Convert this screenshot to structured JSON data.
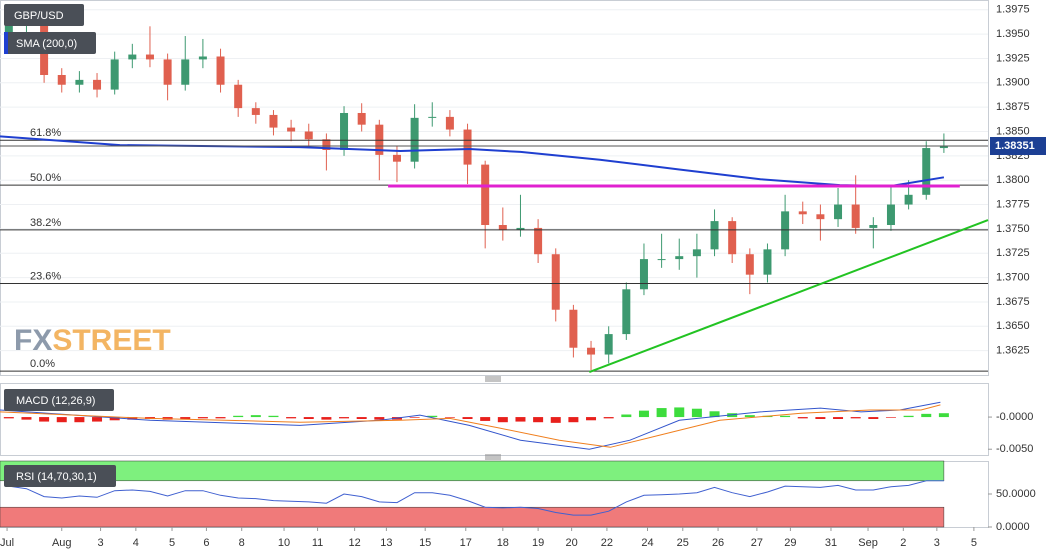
{
  "chart_data": [
    {
      "type": "candlestick",
      "title": "GBP/USD",
      "xlim": [
        0,
        56
      ],
      "ylim": [
        1.36,
        1.3985
      ],
      "yticks": [
        1.3625,
        {
          "value": 1.365,
          "label": "1.3650"
        },
        1.3675,
        {
          "value": 1.37,
          "label": "1.3700"
        },
        1.3725,
        {
          "value": 1.375,
          "label": "1.3750"
        },
        1.3775,
        {
          "value": 1.38,
          "label": "1.3800"
        },
        1.3825,
        {
          "value": 1.385,
          "label": "1.3850"
        },
        1.3875,
        {
          "value": 1.39,
          "label": "1.3900"
        },
        1.3925,
        {
          "value": 1.395,
          "label": "1.3950"
        },
        1.3975
      ],
      "grid": true,
      "up_color": "#3d9970",
      "down_color": "#e0604f",
      "candles": {
        "x": [
          0.5,
          1.5,
          2.5,
          3.5,
          4.5,
          5.5,
          6.5,
          7.5,
          8.5,
          9.5,
          10.5,
          11.5,
          12.5,
          13.5,
          14.5,
          15.5,
          16.5,
          17.5,
          18.5,
          19.5,
          20.5,
          21.5,
          22.5,
          23.5,
          24.5,
          25.5,
          26.5,
          27.5,
          28.5,
          29.5,
          30.5,
          31.5,
          32.5,
          33.5,
          34.5,
          35.5,
          36.5,
          37.5,
          38.5,
          39.5,
          40.5,
          41.5,
          42.5,
          43.5,
          44.5,
          45.5,
          46.5,
          47.5,
          48.5,
          49.5,
          50.5,
          51.5,
          52.5,
          53.5
        ],
        "open": [
          1.395,
          1.396,
          1.3963,
          1.3908,
          1.3898,
          1.3903,
          1.3893,
          1.3924,
          1.3929,
          1.3924,
          1.3898,
          1.3924,
          1.3927,
          1.3898,
          1.3874,
          1.3867,
          1.3854,
          1.385,
          1.3842,
          1.3831,
          1.3869,
          1.3857,
          1.3826,
          1.3819,
          1.3864,
          1.3865,
          1.3852,
          1.3816,
          1.3754,
          1.3749,
          1.3751,
          1.3724,
          1.3667,
          1.3628,
          1.3621,
          1.3642,
          1.3688,
          1.3719,
          1.3719,
          1.3722,
          1.3729,
          1.3758,
          1.3724,
          1.3703,
          1.3729,
          1.3768,
          1.3765,
          1.376,
          1.3775,
          1.3751,
          1.3754,
          1.3775,
          1.3785,
          1.3833
        ],
        "high": [
          1.3968,
          1.3972,
          1.397,
          1.3915,
          1.3912,
          1.391,
          1.3932,
          1.394,
          1.3958,
          1.393,
          1.3948,
          1.3945,
          1.3935,
          1.3903,
          1.388,
          1.3872,
          1.3862,
          1.3858,
          1.3848,
          1.3876,
          1.3879,
          1.3862,
          1.3835,
          1.3878,
          1.388,
          1.3872,
          1.3858,
          1.382,
          1.3772,
          1.3785,
          1.376,
          1.373,
          1.3672,
          1.3635,
          1.365,
          1.3695,
          1.3735,
          1.3745,
          1.374,
          1.3745,
          1.377,
          1.3762,
          1.373,
          1.3735,
          1.3785,
          1.3778,
          1.3775,
          1.3792,
          1.3805,
          1.3762,
          1.3795,
          1.38,
          1.384,
          1.3848
        ],
        "low": [
          1.3942,
          1.395,
          1.39,
          1.389,
          1.389,
          1.3885,
          1.3888,
          1.3915,
          1.3916,
          1.3882,
          1.3892,
          1.3915,
          1.389,
          1.3865,
          1.3858,
          1.3846,
          1.384,
          1.3834,
          1.381,
          1.3825,
          1.385,
          1.38,
          1.3798,
          1.3812,
          1.3855,
          1.3845,
          1.3796,
          1.373,
          1.3738,
          1.3742,
          1.3715,
          1.3655,
          1.3618,
          1.3605,
          1.3612,
          1.3636,
          1.3682,
          1.371,
          1.3708,
          1.37,
          1.3722,
          1.3715,
          1.3683,
          1.3695,
          1.3722,
          1.3755,
          1.3738,
          1.3752,
          1.3745,
          1.373,
          1.3748,
          1.377,
          1.378,
          1.3828
        ],
        "close": [
          1.396,
          1.3963,
          1.3908,
          1.3898,
          1.3903,
          1.3893,
          1.3924,
          1.3929,
          1.3924,
          1.3898,
          1.3924,
          1.3927,
          1.3898,
          1.3874,
          1.3867,
          1.3854,
          1.385,
          1.3842,
          1.3831,
          1.3869,
          1.3857,
          1.3826,
          1.3819,
          1.3864,
          1.3865,
          1.3852,
          1.3816,
          1.3754,
          1.3749,
          1.3751,
          1.3724,
          1.3667,
          1.3628,
          1.3621,
          1.3642,
          1.3688,
          1.3719,
          1.3719,
          1.3722,
          1.3729,
          1.3758,
          1.3724,
          1.3703,
          1.3729,
          1.3768,
          1.3765,
          1.376,
          1.3775,
          1.3751,
          1.3754,
          1.3775,
          1.3785,
          1.3833,
          1.3835
        ]
      },
      "sma": {
        "name": "SMA (200,0)",
        "color": "#1f3fd0",
        "x": [
          0,
          6.8,
          17,
          22.7,
          26.6,
          29.5,
          34,
          38.5,
          43.1,
          47.6,
          50.5,
          53.5
        ],
        "values": [
          1.3845,
          1.3836,
          1.3834,
          1.383,
          1.3832,
          1.3829,
          1.3821,
          1.3811,
          1.3801,
          1.3795,
          1.3794,
          1.3803
        ]
      },
      "fib_levels": [
        {
          "label": "61.8%",
          "value": 1.3841
        },
        {
          "label": "50.0%",
          "value": 1.3795
        },
        {
          "label": "38.2%",
          "value": 1.3749
        },
        {
          "label": "23.6%",
          "value": 1.3694
        },
        {
          "label": "0.0%",
          "value": 1.3604
        }
      ],
      "support_line": {
        "color": "#e020d0",
        "x": [
          22,
          54.4
        ],
        "values": [
          1.3794,
          1.3794
        ]
      },
      "trend_line": {
        "color": "#22c322",
        "x": [
          33.4,
          56
        ],
        "values": [
          1.3603,
          1.3759
        ]
      },
      "last_price": 1.38351,
      "last_price_color": "#1c3f94",
      "watermark": [
        "FX",
        "STREET"
      ]
    },
    {
      "type": "macd",
      "title": "MACD (12,26,9)",
      "xlim": [
        0,
        56
      ],
      "ylim": [
        -0.0059,
        0.0053
      ],
      "yticks": [
        {
          "value": 0,
          "label": "-0.0000"
        },
        {
          "value": -0.005,
          "label": "-0.0050"
        }
      ],
      "histogram": {
        "up_color": "#3ddc3d",
        "down_color": "#e8201c",
        "values": [
          -0.0002,
          -0.0004,
          -0.0007,
          -0.0008,
          -0.0008,
          -0.0007,
          -0.0005,
          -0.0004,
          -0.0003,
          -0.0004,
          -0.0003,
          -0.0002,
          -0.0002,
          0.0002,
          0.0003,
          0.0002,
          -0.0002,
          -0.0003,
          -0.0004,
          -0.0002,
          -0.0003,
          -0.0004,
          -0.0004,
          -0.0001,
          0.0002,
          -0.0001,
          -0.0003,
          -0.0006,
          -0.0008,
          -0.0007,
          -0.0008,
          -0.0009,
          -0.0008,
          -0.0005,
          -0.0002,
          0.0004,
          0.001,
          0.0014,
          0.0015,
          0.0013,
          0.0009,
          0.0006,
          0.0003,
          0.0002,
          0.0002,
          -0.0002,
          -0.0003,
          -0.0003,
          -0.0002,
          -0.0003,
          -0.0001,
          0.0002,
          0.0005,
          0.0006
        ]
      },
      "macd_line": {
        "color": "#3355cc",
        "x": [
          0,
          8.5,
          17,
          21.5,
          23.8,
          26.6,
          29.5,
          33.4,
          35.7,
          38.5,
          43.1,
          46.5,
          48.8,
          51,
          53.3
        ],
        "values": [
          0.0011,
          -0.0005,
          -0.0013,
          -0.0005,
          0.0003,
          -0.0013,
          -0.0036,
          -0.005,
          -0.0036,
          -0.0005,
          0.0008,
          0.0014,
          0.0008,
          0.0011,
          0.0023
        ]
      },
      "signal_line": {
        "color": "#f07f1e",
        "x": [
          0,
          8.5,
          17,
          22.7,
          25.5,
          28.3,
          31.7,
          34.6,
          37.4,
          40.8,
          45.4,
          49.3,
          52.2,
          53.3
        ],
        "values": [
          0.0008,
          -0.0002,
          -0.0008,
          -0.0005,
          -0.0002,
          -0.0017,
          -0.0036,
          -0.0047,
          -0.0028,
          -0.0005,
          0.0006,
          0.0011,
          0.0011,
          0.0019
        ]
      }
    },
    {
      "type": "rsi",
      "title": "RSI (14,70,30,1)",
      "xlim": [
        0,
        56
      ],
      "ylim": [
        0,
        100
      ],
      "yticks": [
        {
          "value": 50,
          "label": "50.0000"
        },
        {
          "value": 0,
          "label": "0.0000"
        }
      ],
      "overbought": 70,
      "oversold": 30,
      "overbought_color": "#7ef07e",
      "oversold_color": "#f07a7a",
      "line": {
        "color": "#4060d0",
        "values": [
          62,
          58,
          46,
          44,
          47,
          45,
          55,
          56,
          54,
          47,
          55,
          55,
          48,
          44,
          43,
          40,
          39,
          38,
          36,
          50,
          46,
          38,
          37,
          52,
          52,
          48,
          40,
          30,
          29,
          30,
          28,
          22,
          18,
          18,
          24,
          38,
          48,
          49,
          50,
          52,
          60,
          52,
          46,
          53,
          62,
          61,
          60,
          63,
          56,
          56,
          61,
          63,
          70,
          70
        ]
      },
      "xticks": [
        {
          "value": 0.4,
          "label": "Jul"
        },
        {
          "value": 3.5,
          "label": "Aug"
        },
        {
          "value": 5.7,
          "label": "3"
        },
        {
          "value": 7.7,
          "label": "4"
        },
        {
          "value": 9.75,
          "label": "5"
        },
        {
          "value": 11.7,
          "label": "6"
        },
        {
          "value": 13.7,
          "label": "8"
        },
        {
          "value": 16.1,
          "label": "10"
        },
        {
          "value": 18,
          "label": "11"
        },
        {
          "value": 20.1,
          "label": "12"
        },
        {
          "value": 21.9,
          "label": "13"
        },
        {
          "value": 24.1,
          "label": "15"
        },
        {
          "value": 26.4,
          "label": "17"
        },
        {
          "value": 28.5,
          "label": "18"
        },
        {
          "value": 30.5,
          "label": "19"
        },
        {
          "value": 32.4,
          "label": "20"
        },
        {
          "value": 34.4,
          "label": "22"
        },
        {
          "value": 36.7,
          "label": "24"
        },
        {
          "value": 38.7,
          "label": "25"
        },
        {
          "value": 40.7,
          "label": "26"
        },
        {
          "value": 42.9,
          "label": "27"
        },
        {
          "value": 44.8,
          "label": "29"
        },
        {
          "value": 47.1,
          "label": "31"
        },
        {
          "value": 49.2,
          "label": "Sep"
        },
        {
          "value": 51.2,
          "label": "2"
        },
        {
          "value": 53.1,
          "label": "3"
        },
        {
          "value": 55.2,
          "label": "5"
        }
      ]
    }
  ]
}
